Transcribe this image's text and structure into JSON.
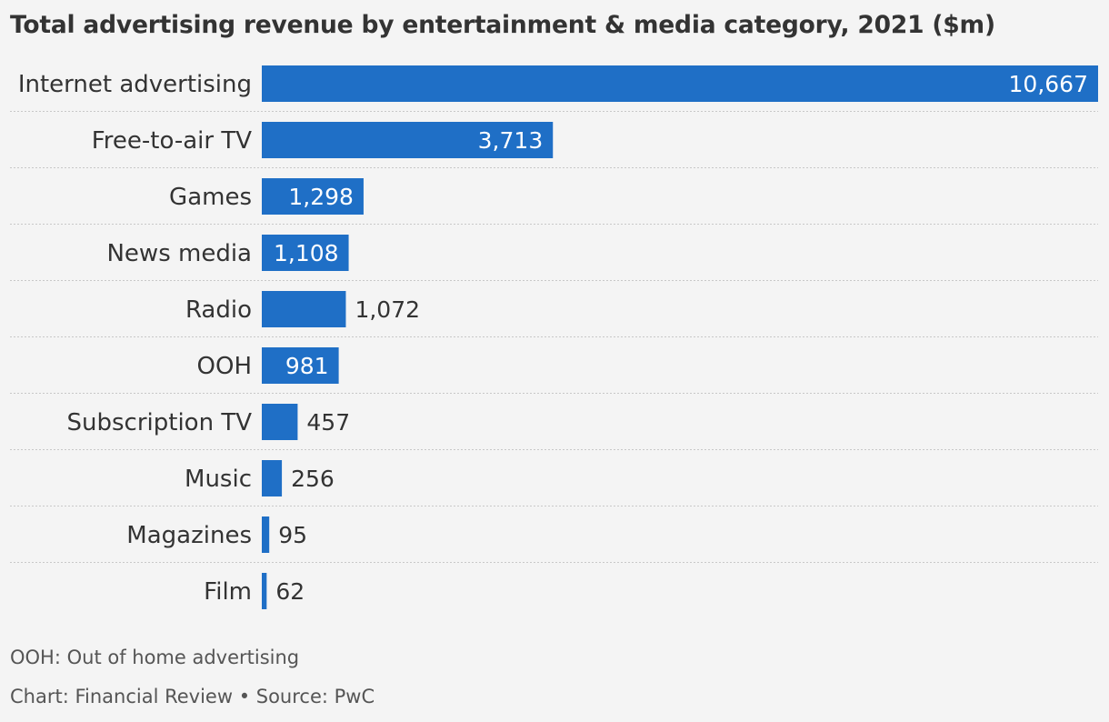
{
  "chart_data": {
    "type": "bar",
    "orientation": "horizontal",
    "title": "Total advertising revenue by entertainment & media category, 2021 ($m)",
    "categories": [
      "Internet advertising",
      "Free-to-air TV",
      "Games",
      "News media",
      "Radio",
      "OOH",
      "Subscription TV",
      "Music",
      "Magazines",
      "Film"
    ],
    "values": [
      10667,
      3713,
      1298,
      1108,
      1072,
      981,
      457,
      256,
      95,
      62
    ],
    "value_labels": [
      "10,667",
      "3,713",
      "1,298",
      "1,108",
      "1,072",
      "981",
      "457",
      "256",
      "95",
      "62"
    ],
    "xlim": [
      0,
      10667
    ],
    "grid": false,
    "legend": "none",
    "bar_color": "#1f6fc6"
  },
  "footnote": "OOH: Out of home advertising",
  "credit": "Chart: Financial Review • Source: PwC"
}
